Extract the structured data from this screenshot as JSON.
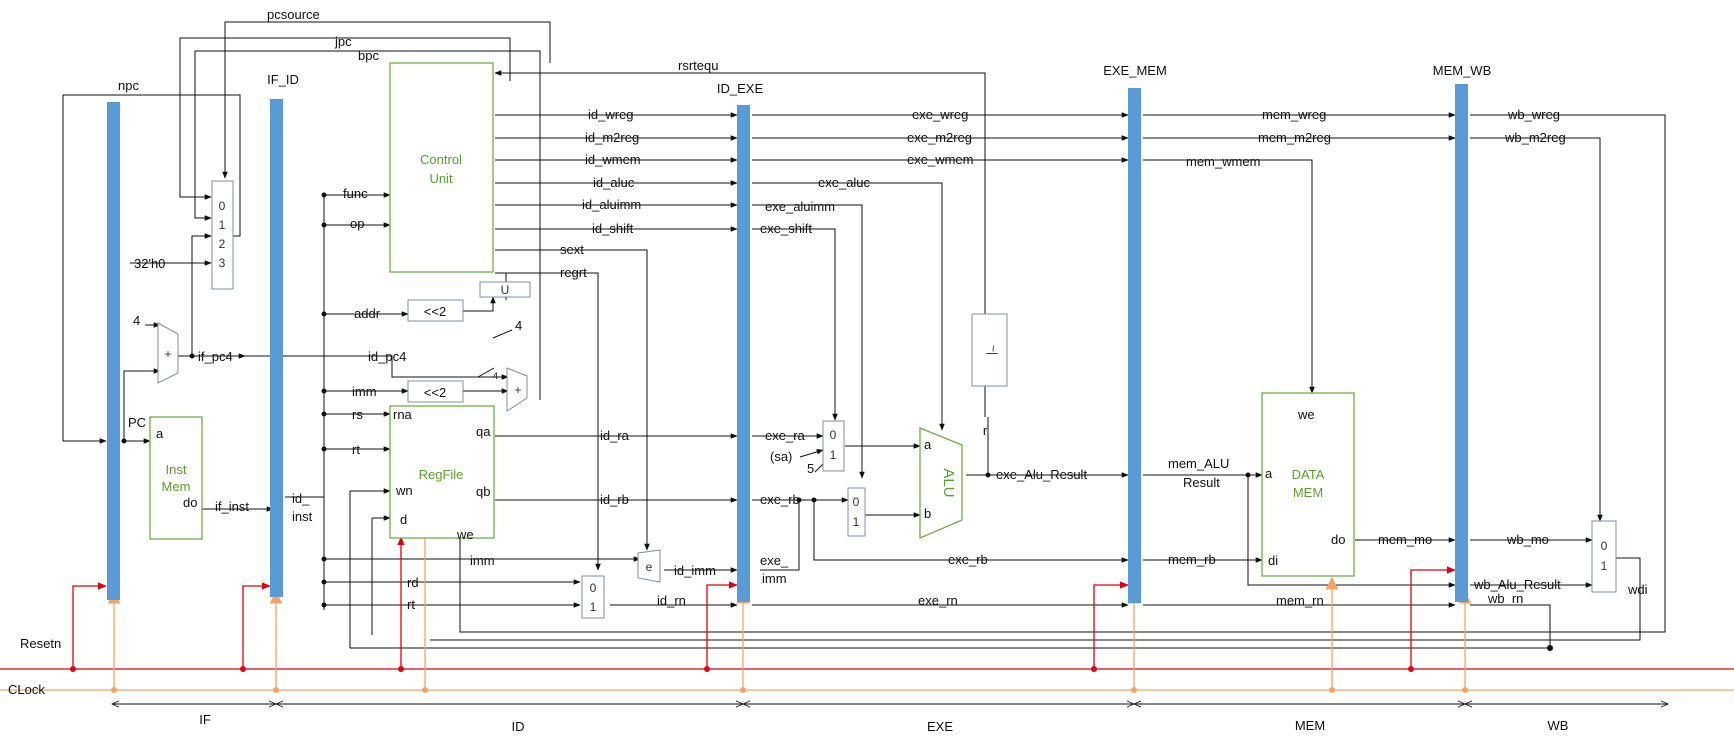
{
  "colors": {
    "pipeline_bar": "#5b9bd5",
    "component_green": "#70ad47",
    "reset_line": "#e0000f",
    "clock_line": "#f4a46a",
    "wire": "#111111"
  },
  "registers": {
    "if_id": "IF_ID",
    "id_exe": "ID_EXE",
    "exe_mem": "EXE_MEM",
    "mem_wb": "MEM_WB"
  },
  "blocks": {
    "control_unit": [
      "Control",
      "Unit"
    ],
    "regfile": "RegFile",
    "inst_mem": [
      "Inst",
      "Mem"
    ],
    "data_mem": [
      "DATA",
      "MEM"
    ],
    "alu": "ALU",
    "shift1": "<<2",
    "shift2": "<<2",
    "u_box": "U",
    "e_box": "e",
    "not_box": "~|",
    "plus1": "+",
    "plus2": "+"
  },
  "ports": {
    "inst_a": "a",
    "inst_do": "do",
    "rf_rna": "rna",
    "rf_qa": "qa",
    "rf_qb": "qb",
    "rf_wn": "wn",
    "rf_d": "d",
    "rf_we": "we",
    "dm_we": "we",
    "dm_a": "a",
    "dm_do": "do",
    "dm_di": "di",
    "alu_a": "a",
    "alu_b": "b",
    "mux4": [
      "0",
      "1",
      "2",
      "3"
    ],
    "mux_rn": [
      "0",
      "1"
    ],
    "mux_ra": [
      "0",
      "1"
    ],
    "mux_rb": [
      "0",
      "1"
    ],
    "mux_wb": [
      "0",
      "1"
    ]
  },
  "signals": {
    "pcsource": "pcsource",
    "jpc": "jpc",
    "bpc": "bpc",
    "npc": "npc",
    "rsrtequ": "rsrtequ",
    "zero32": "32'h0",
    "four": "4",
    "if_pc4": "if_pc4",
    "pc": "PC",
    "if_inst": "if_inst",
    "id_inst": [
      "id_",
      "inst"
    ],
    "func": "func",
    "op": "op",
    "addr": "addr",
    "id_pc4": "id_pc4",
    "imm": "imm",
    "rs": "rs",
    "rt": "rt",
    "four_a": "4",
    "four_b": "4",
    "imm2": "imm",
    "rd": "rd",
    "rt2": "rt",
    "id_wreg": "id_wreg",
    "id_m2reg": "id_m2reg",
    "id_wmem": "id_wmem",
    "id_aluc": "id_aluc",
    "id_aluimm": "id_aluimm",
    "id_shift": "id_shift",
    "sext": "sext",
    "regrt": "regrt",
    "id_ra": "id_ra",
    "id_rb": "id_rb",
    "id_imm": "id_imm",
    "id_rn": "id_rn",
    "exe_wreg": "exe_wreg",
    "exe_m2reg": "exe_m2reg",
    "exe_wmem": "exe_wmem",
    "exe_aluc": "exe_aluc",
    "exe_aluimm": "exe_aluimm",
    "exe_shift": "exe_shift",
    "exe_ra": "exe_ra",
    "sa": "(sa)",
    "five": "5",
    "exe_rb": "exe_rb",
    "exe_imm": [
      "exe_",
      "imm"
    ],
    "exe_rb2": "exe_rb",
    "exe_rn": "exe_rn",
    "r": "r",
    "exe_alu_result": "exe_Alu_Result",
    "mem_wreg": "mem_wreg",
    "mem_m2reg": "mem_m2reg",
    "mem_wmem": "mem_wmem",
    "mem_alu_result": [
      "mem_ALU",
      "Result"
    ],
    "mem_rb": "mem_rb",
    "mem_mo": "mem_mo",
    "mem_rn": "mem_rn",
    "wb_wreg": "wb_wreg",
    "wb_m2reg": "wb_m2reg",
    "wb_mo": "wb_mo",
    "wb_alu_result": "wb_Alu_Result",
    "wb_rn": "wb_rn",
    "wdi": "wdi",
    "resetn": "Resetn",
    "clock": "CLock"
  },
  "stages": [
    "IF",
    "ID",
    "EXE",
    "MEM",
    "WB"
  ]
}
